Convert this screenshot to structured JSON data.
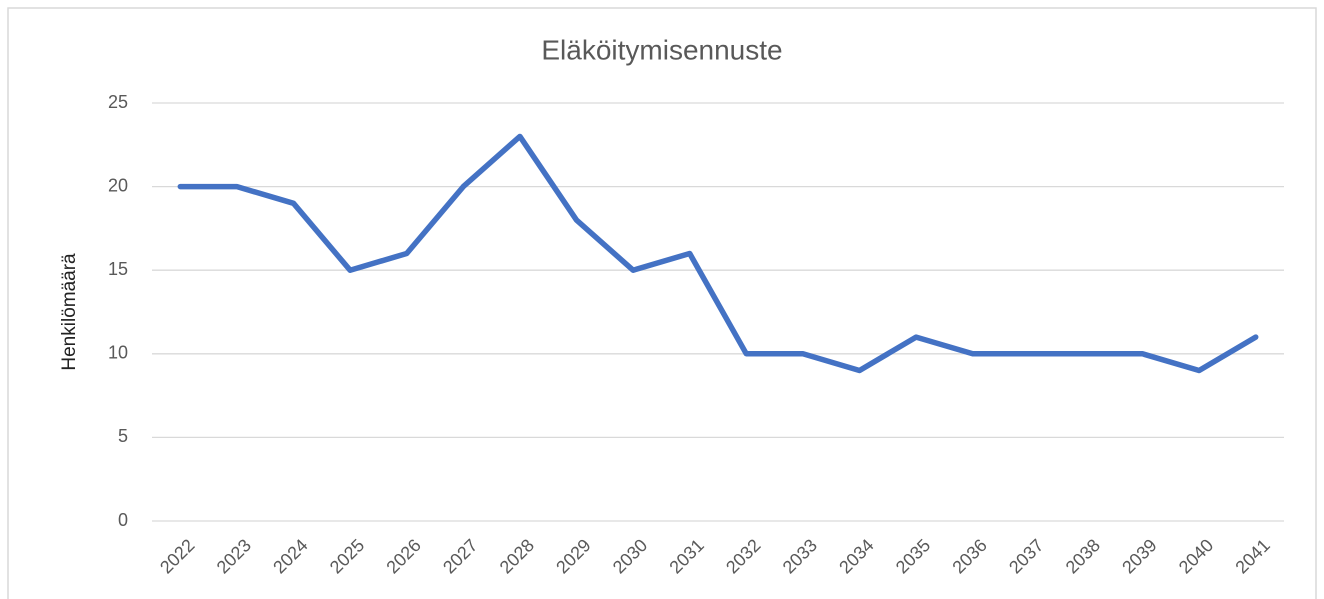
{
  "chart_data": {
    "type": "line",
    "title": "Eläköitymisennuste",
    "y_label": "Henkilömäärä",
    "categories": [
      "2022",
      "2023",
      "2024",
      "2025",
      "2026",
      "2027",
      "2028",
      "2029",
      "2030",
      "2031",
      "2032",
      "2033",
      "2034",
      "2035",
      "2036",
      "2037",
      "2038",
      "2039",
      "2040",
      "2041"
    ],
    "values": [
      20,
      20,
      19,
      15,
      16,
      20,
      23,
      18,
      15,
      16,
      10,
      10,
      9,
      11,
      10,
      10,
      10,
      10,
      9,
      11
    ],
    "color": "#4472c4",
    "ylim": [
      0,
      25
    ],
    "yticks": [
      0,
      5,
      10,
      15,
      20,
      25
    ],
    "grid": true
  }
}
